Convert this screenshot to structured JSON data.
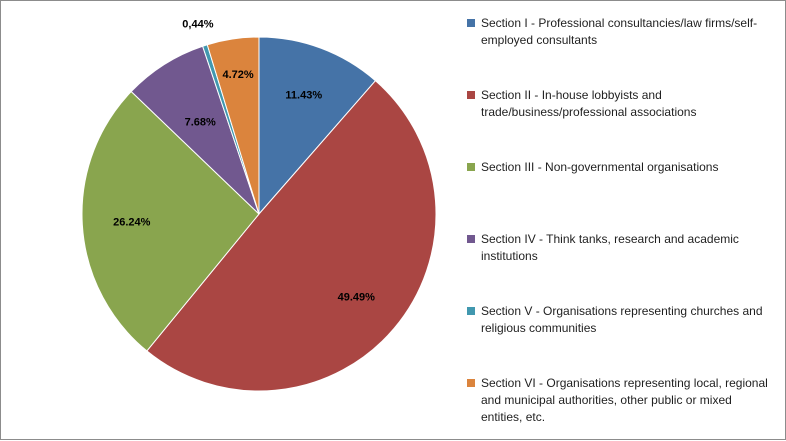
{
  "chart_data": {
    "type": "pie",
    "slices": [
      {
        "label": "Section I - Professional consultancies/law firms/self-employed consultants",
        "value": 11.43,
        "value_label": "11.43%",
        "color": "#4573a7"
      },
      {
        "label": "Section II - In-house lobbyists and trade/business/professional associations",
        "value": 49.49,
        "value_label": "49.49%",
        "color": "#aa4643"
      },
      {
        "label": "Section III - Non-governmental organisations",
        "value": 26.24,
        "value_label": "26.24%",
        "color": "#89a54e"
      },
      {
        "label": "Section IV - Think tanks, research and academic institutions",
        "value": 7.68,
        "value_label": "7.68%",
        "color": "#71588f"
      },
      {
        "label": "Section V - Organisations representing churches and religious communities",
        "value": 0.44,
        "value_label": "0,44%",
        "color": "#4198af"
      },
      {
        "label": "Section VI - Organisations representing local, regional and municipal authorities, other public or mixed entities, etc.",
        "value": 4.72,
        "value_label": "4.72%",
        "color": "#db843d"
      }
    ],
    "legend_position": "right"
  }
}
